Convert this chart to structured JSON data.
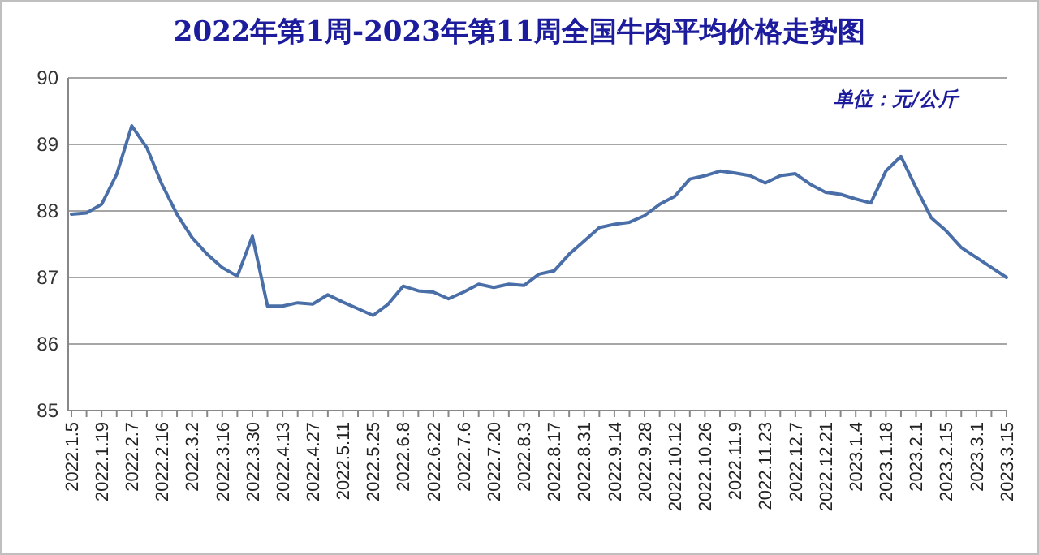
{
  "chart_data": {
    "type": "line",
    "title": "2022年第1周-2023年第11周全国牛肉平均价格走势图",
    "annotations": [
      "单位：元/公斤"
    ],
    "categories": [
      "2022.1.5",
      null,
      "2022.1.19",
      null,
      "2022.2.7",
      null,
      "2022.2.16",
      null,
      "2022.3.2",
      null,
      "2022.3.16",
      null,
      "2022.3.30",
      null,
      "2022.4.13",
      null,
      "2022.4.27",
      null,
      "2022.5.11",
      null,
      "2022.5.25",
      null,
      "2022.6.8",
      null,
      "2022.6.22",
      null,
      "2022.7.6",
      null,
      "2022.7.20",
      null,
      "2022.8.3",
      null,
      "2022.8.17",
      null,
      "2022.8.31",
      null,
      "2022.9.14",
      null,
      "2022.9.28",
      null,
      "2022.10.12",
      null,
      "2022.10.26",
      null,
      "2022.11.9",
      null,
      "2022.11.23",
      null,
      "2022.12.7",
      null,
      "2022.12.21",
      null,
      "2023.1.4",
      null,
      "2023.1.18",
      null,
      "2023.2.1",
      null,
      "2023.2.15",
      null,
      "2023.3.1",
      null,
      "2023.3.15"
    ],
    "series": [
      {
        "color": "#4a6fa8",
        "values": [
          87.95,
          87.97,
          88.1,
          88.55,
          89.28,
          88.95,
          88.4,
          87.95,
          87.6,
          87.35,
          87.15,
          87.02,
          87.62,
          86.57,
          86.57,
          86.62,
          86.6,
          86.74,
          86.63,
          86.53,
          86.43,
          86.6,
          86.87,
          86.8,
          86.78,
          86.68,
          86.78,
          86.9,
          86.85,
          86.9,
          86.88,
          87.05,
          87.1,
          87.35,
          87.55,
          87.75,
          87.8,
          87.83,
          87.93,
          88.1,
          88.22,
          88.48,
          88.53,
          88.6,
          88.57,
          88.53,
          88.42,
          88.53,
          88.56,
          88.4,
          88.28,
          88.25,
          88.18,
          88.12,
          88.6,
          88.82,
          88.35,
          87.9,
          87.7,
          87.45,
          87.3,
          87.15,
          87.0
        ]
      }
    ],
    "ylim": [
      85,
      90
    ],
    "yticks": [
      85,
      86,
      87,
      88,
      89,
      90
    ],
    "grid": "y",
    "marker": "none",
    "line_style": "solid"
  }
}
